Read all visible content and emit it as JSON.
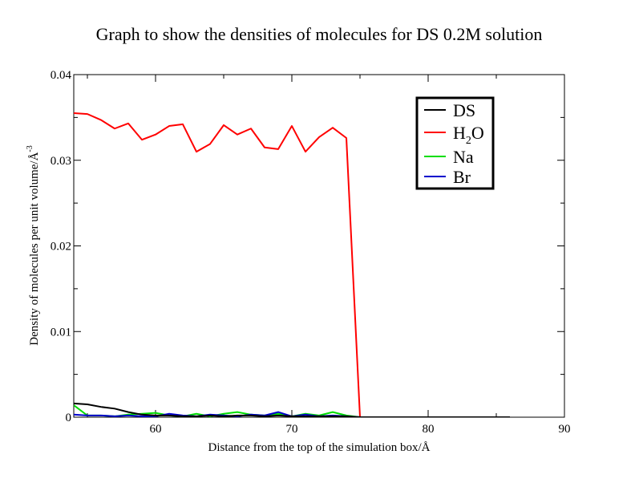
{
  "chart_data": {
    "type": "line",
    "title": "Graph to show the densities of molecules for DS 0.2M solution",
    "xlabel": "Distance from the top of the simulation box/Å",
    "ylabel": "Density of molecules per unit volume/Å",
    "ylabel_superscript": "-3",
    "xlim": [
      54,
      90
    ],
    "ylim": [
      0,
      0.04
    ],
    "x_ticks": [
      60,
      70,
      80,
      90
    ],
    "x_tick_labels": [
      "60",
      "70",
      "80",
      "90"
    ],
    "y_ticks": [
      0,
      0.01,
      0.02,
      0.03,
      0.04
    ],
    "y_tick_labels": [
      "0",
      "0.01",
      "0.02",
      "0.03",
      "0.04"
    ],
    "legend_position": "top-right",
    "grid": false,
    "series": [
      {
        "name": "DS",
        "color": "#000000",
        "x": [
          54,
          55,
          56,
          57,
          58,
          59,
          60,
          61,
          62,
          63,
          64,
          65,
          66,
          67,
          68,
          69,
          70,
          71,
          72,
          73,
          74,
          75,
          76,
          80,
          86
        ],
        "y": [
          0.0016,
          0.0015,
          0.0012,
          0.001,
          0.0006,
          0.0003,
          0.0002,
          0.0002,
          0.0001,
          0.0001,
          0.0002,
          0.0001,
          0.0002,
          0.0002,
          0.0001,
          0.0002,
          0.0001,
          0.0001,
          0.0001,
          0.0001,
          0.0001,
          0.0,
          0.0,
          0.0,
          0.0
        ]
      },
      {
        "name": "H",
        "name_sub": "2",
        "name_suffix": "O",
        "color": "#ff0000",
        "x": [
          54,
          55,
          56,
          57,
          58,
          59,
          60,
          61,
          62,
          63,
          64,
          65,
          66,
          67,
          68,
          69,
          70,
          71,
          72,
          73,
          74,
          75,
          76,
          80,
          86
        ],
        "y": [
          0.0355,
          0.0354,
          0.0347,
          0.0337,
          0.0343,
          0.0324,
          0.033,
          0.034,
          0.0342,
          0.031,
          0.0319,
          0.0341,
          0.033,
          0.0337,
          0.0315,
          0.0313,
          0.034,
          0.031,
          0.0327,
          0.0338,
          0.0326,
          0.0,
          0.0,
          0.0,
          0.0
        ]
      },
      {
        "name": "Na",
        "color": "#00dd00",
        "x": [
          54,
          55,
          56,
          57,
          58,
          59,
          60,
          61,
          62,
          63,
          64,
          65,
          66,
          67,
          68,
          69,
          70,
          71,
          72,
          73,
          74,
          75,
          76,
          80,
          86
        ],
        "y": [
          0.0014,
          0.0002,
          0.0002,
          0.0001,
          0.0003,
          0.0004,
          0.0005,
          0.0002,
          0.0001,
          0.0004,
          0.0001,
          0.0004,
          0.0006,
          0.0003,
          0.0002,
          0.0004,
          0.0001,
          0.0004,
          0.0002,
          0.0006,
          0.0002,
          0.0,
          0.0,
          0.0,
          0.0
        ]
      },
      {
        "name": "Br",
        "color": "#0000cc",
        "x": [
          54,
          55,
          56,
          57,
          58,
          59,
          60,
          61,
          62,
          63,
          64,
          65,
          66,
          67,
          68,
          69,
          70,
          71,
          72,
          73,
          74,
          75,
          76,
          80,
          86
        ],
        "y": [
          0.0003,
          0.0002,
          0.0002,
          0.0001,
          0.0002,
          0.0001,
          0.0001,
          0.0004,
          0.0002,
          0.0001,
          0.0003,
          0.0002,
          0.0001,
          0.0003,
          0.0002,
          0.0006,
          0.0001,
          0.0003,
          0.0001,
          0.0002,
          0.0001,
          0.0,
          0.0,
          0.0,
          0.0
        ]
      }
    ]
  }
}
